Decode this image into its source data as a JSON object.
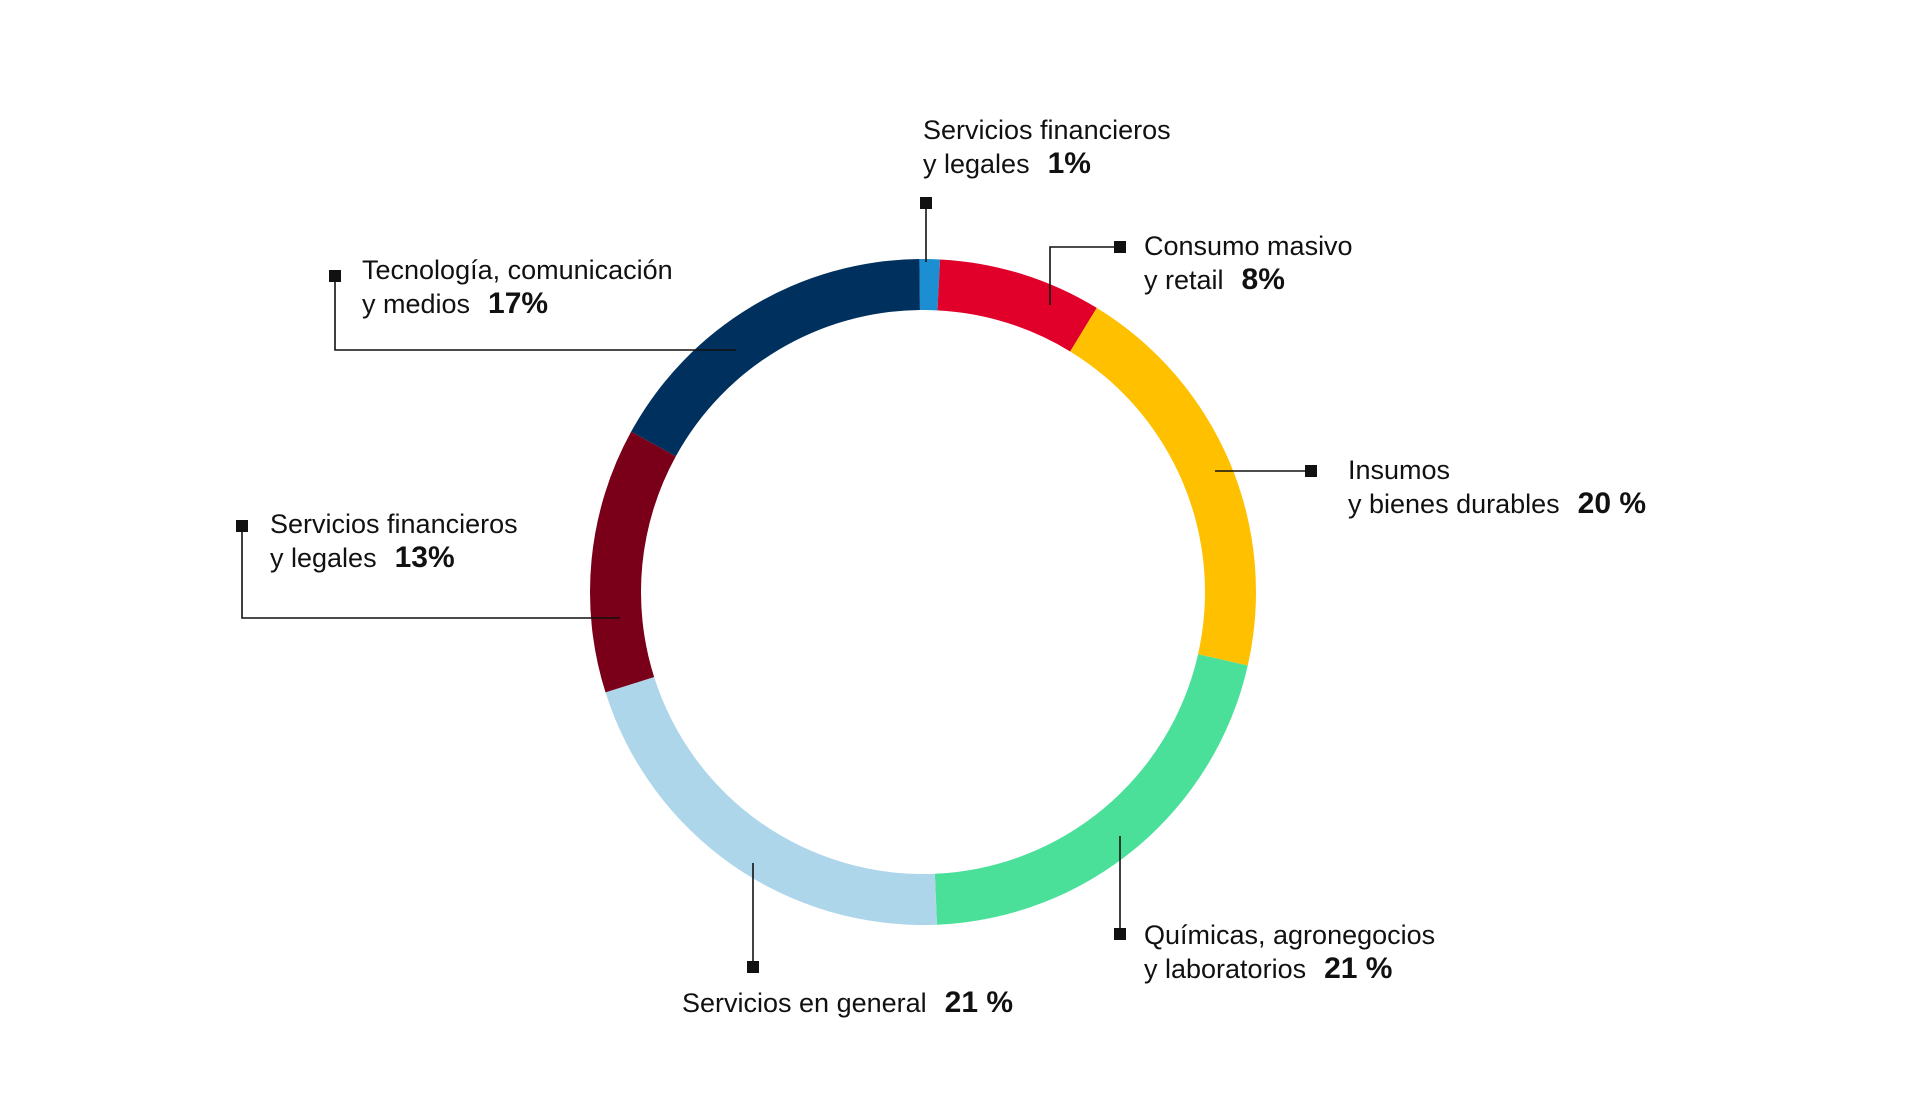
{
  "chart_data": {
    "type": "pie",
    "style": "donut",
    "slices": [
      {
        "label_line1": "Servicios financieros",
        "label_line2": "y legales",
        "pct_label": "1%",
        "value": 1,
        "color": "#1b8fd2"
      },
      {
        "label_line1": "Consumo masivo",
        "label_line2": "y retail",
        "pct_label": "8%",
        "value": 8,
        "color": "#e0002a"
      },
      {
        "label_line1": "Insumos",
        "label_line2": "y bienes durables",
        "pct_label": "20 %",
        "value": 20,
        "color": "#ffc000"
      },
      {
        "label_line1": "Químicas, agronegocios",
        "label_line2": "y laboratorios",
        "pct_label": "21 %",
        "value": 21,
        "color": "#4be09a"
      },
      {
        "label_line1": "",
        "label_line2": "Servicios en general",
        "pct_label": "21 %",
        "value": 21,
        "color": "#aed6eb"
      },
      {
        "label_line1": "Servicios financieros",
        "label_line2": "y legales",
        "pct_label": "13%",
        "value": 13,
        "color": "#7a0019"
      },
      {
        "label_line1": "Tecnología, comunicación",
        "label_line2": "y medios",
        "pct_label": "17%",
        "value": 17,
        "color": "#00305e"
      }
    ],
    "legend": "none"
  }
}
